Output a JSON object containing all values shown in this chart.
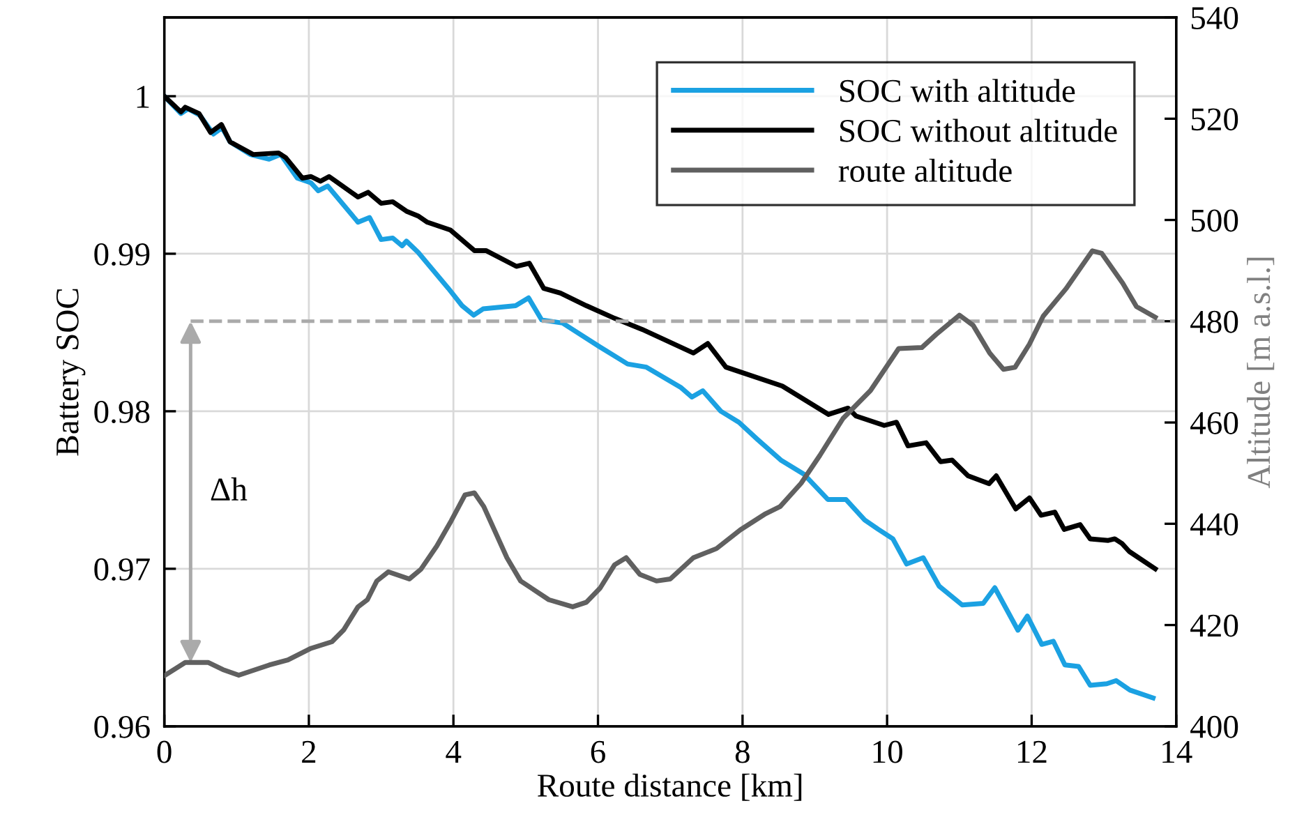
{
  "chart_data": {
    "type": "line",
    "xlabel": "Route distance [km]",
    "ylabel": "Battery SOC",
    "y2label": "Altitude [m a.s.l.]",
    "xlim": [
      0,
      14
    ],
    "xticks": [
      0,
      2,
      4,
      6,
      8,
      10,
      12,
      14
    ],
    "ylim": [
      0.96,
      1.005
    ],
    "yticks": [
      0.96,
      0.97,
      0.98,
      0.99,
      {
        "value": 1,
        "label": "1"
      }
    ],
    "y2lim": [
      400,
      540
    ],
    "y2ticks": [
      400,
      420,
      440,
      460,
      480,
      500,
      520,
      540
    ],
    "grid": true,
    "legend": "top right",
    "line_style": "solid",
    "marker": "none",
    "series": [
      {
        "name": "SOC with altitude",
        "color": "#1ba1e2",
        "x": [
          0,
          0.23,
          0.33,
          0.49,
          0.68,
          0.8,
          0.91,
          1.19,
          1.45,
          1.61,
          1.84,
          2.03,
          2.13,
          2.26,
          2.68,
          2.84,
          3.0,
          3.16,
          3.29,
          3.35,
          3.51,
          3.93,
          4.12,
          4.28,
          4.41,
          4.86,
          5.04,
          5.22,
          5.51,
          6.02,
          6.41,
          6.67,
          7.15,
          7.3,
          7.45,
          7.7,
          7.95,
          8.21,
          8.53,
          8.85,
          9.18,
          9.43,
          9.69,
          9.88,
          10.08,
          10.27,
          10.5,
          10.72,
          11.04,
          11.33,
          11.49,
          11.81,
          11.94,
          12.14,
          12.3,
          12.46,
          12.65,
          12.81,
          13.04,
          13.17,
          13.36,
          13.68
        ],
        "values": [
          1.0,
          0.9989,
          0.9992,
          0.9988,
          0.9976,
          0.998,
          0.9971,
          0.9963,
          0.996,
          0.9963,
          0.9948,
          0.9945,
          0.994,
          0.9943,
          0.992,
          0.9923,
          0.9909,
          0.991,
          0.9905,
          0.9908,
          0.9901,
          0.9878,
          0.9867,
          0.9861,
          0.9865,
          0.9867,
          0.9872,
          0.9858,
          0.9856,
          0.9841,
          0.983,
          0.9828,
          0.9815,
          0.9809,
          0.9813,
          0.98,
          0.9793,
          0.9782,
          0.9769,
          0.976,
          0.9744,
          0.9744,
          0.9731,
          0.9725,
          0.9719,
          0.9703,
          0.9707,
          0.9689,
          0.9677,
          0.9678,
          0.9688,
          0.9661,
          0.967,
          0.9652,
          0.9654,
          0.9639,
          0.9638,
          0.9626,
          0.9627,
          0.9629,
          0.9623,
          0.9618
        ]
      },
      {
        "name": "SOC without altitude",
        "color": "#000000",
        "x": [
          0,
          0.23,
          0.29,
          0.48,
          0.64,
          0.79,
          0.91,
          1.23,
          1.58,
          1.68,
          1.91,
          2.03,
          2.16,
          2.28,
          2.68,
          2.82,
          3.0,
          3.16,
          3.35,
          3.51,
          3.64,
          3.96,
          4.29,
          4.45,
          4.87,
          5.05,
          5.25,
          5.48,
          5.84,
          6.23,
          6.61,
          7.32,
          7.52,
          7.77,
          8.55,
          9.19,
          9.46,
          9.57,
          9.96,
          10.13,
          10.29,
          10.54,
          10.74,
          10.9,
          11.12,
          11.41,
          11.51,
          11.78,
          11.97,
          12.13,
          12.32,
          12.45,
          12.67,
          12.81,
          13.06,
          13.15,
          13.25,
          13.35,
          13.71
        ],
        "values": [
          1.0,
          0.999,
          0.9993,
          0.9989,
          0.9977,
          0.9982,
          0.9971,
          0.9963,
          0.9964,
          0.9961,
          0.9948,
          0.9949,
          0.9946,
          0.9949,
          0.9936,
          0.9939,
          0.9932,
          0.9933,
          0.9927,
          0.9924,
          0.992,
          0.9915,
          0.9902,
          0.9902,
          0.9892,
          0.9894,
          0.9878,
          0.9875,
          0.9867,
          0.9859,
          0.9852,
          0.9837,
          0.9843,
          0.9828,
          0.9816,
          0.9798,
          0.9802,
          0.9797,
          0.9791,
          0.9793,
          0.9778,
          0.978,
          0.9768,
          0.9769,
          0.9759,
          0.9754,
          0.9759,
          0.9738,
          0.9745,
          0.9734,
          0.9736,
          0.9725,
          0.9728,
          0.9719,
          0.9718,
          0.9719,
          0.9716,
          0.9711,
          0.97
        ]
      },
      {
        "name": "route altitude",
        "color": "#606060",
        "axis": "y2",
        "x": [
          0,
          0.29,
          0.61,
          0.81,
          1.03,
          1.45,
          1.71,
          2.03,
          2.32,
          2.48,
          2.68,
          2.81,
          2.94,
          3.1,
          3.39,
          3.55,
          3.77,
          3.97,
          4.16,
          4.29,
          4.42,
          4.74,
          4.93,
          5.32,
          5.65,
          5.84,
          6.03,
          6.23,
          6.39,
          6.58,
          6.81,
          7.0,
          7.32,
          7.64,
          7.97,
          8.32,
          8.52,
          8.81,
          9.07,
          9.39,
          9.77,
          10.16,
          10.48,
          10.68,
          11.0,
          11.19,
          11.42,
          11.61,
          11.77,
          11.97,
          12.16,
          12.48,
          12.84,
          12.97,
          13.26,
          13.45,
          13.71
        ],
        "values": [
          410,
          412.6,
          412.6,
          411.2,
          410.1,
          412.1,
          413.1,
          415.4,
          416.7,
          419,
          423.6,
          425,
          428.7,
          430.5,
          429.1,
          431,
          435.6,
          440.6,
          445.7,
          446.1,
          443.4,
          433.3,
          428.7,
          425,
          423.6,
          424.5,
          427.3,
          431.9,
          433.3,
          430,
          428.7,
          429.1,
          433.3,
          435.1,
          438.8,
          442,
          443.4,
          448,
          453.5,
          460.8,
          466.3,
          474.6,
          474.8,
          477.4,
          481.2,
          479.2,
          473.7,
          470.5,
          470.9,
          475.5,
          481,
          486.5,
          493.9,
          493.4,
          487.5,
          482.9,
          480.8
        ]
      }
    ],
    "ref_lines": [
      {
        "axis": "y2",
        "value": 480,
        "color": "#aaaaaa",
        "line_style": "dashed"
      }
    ],
    "annotations": [
      "Δh"
    ]
  }
}
